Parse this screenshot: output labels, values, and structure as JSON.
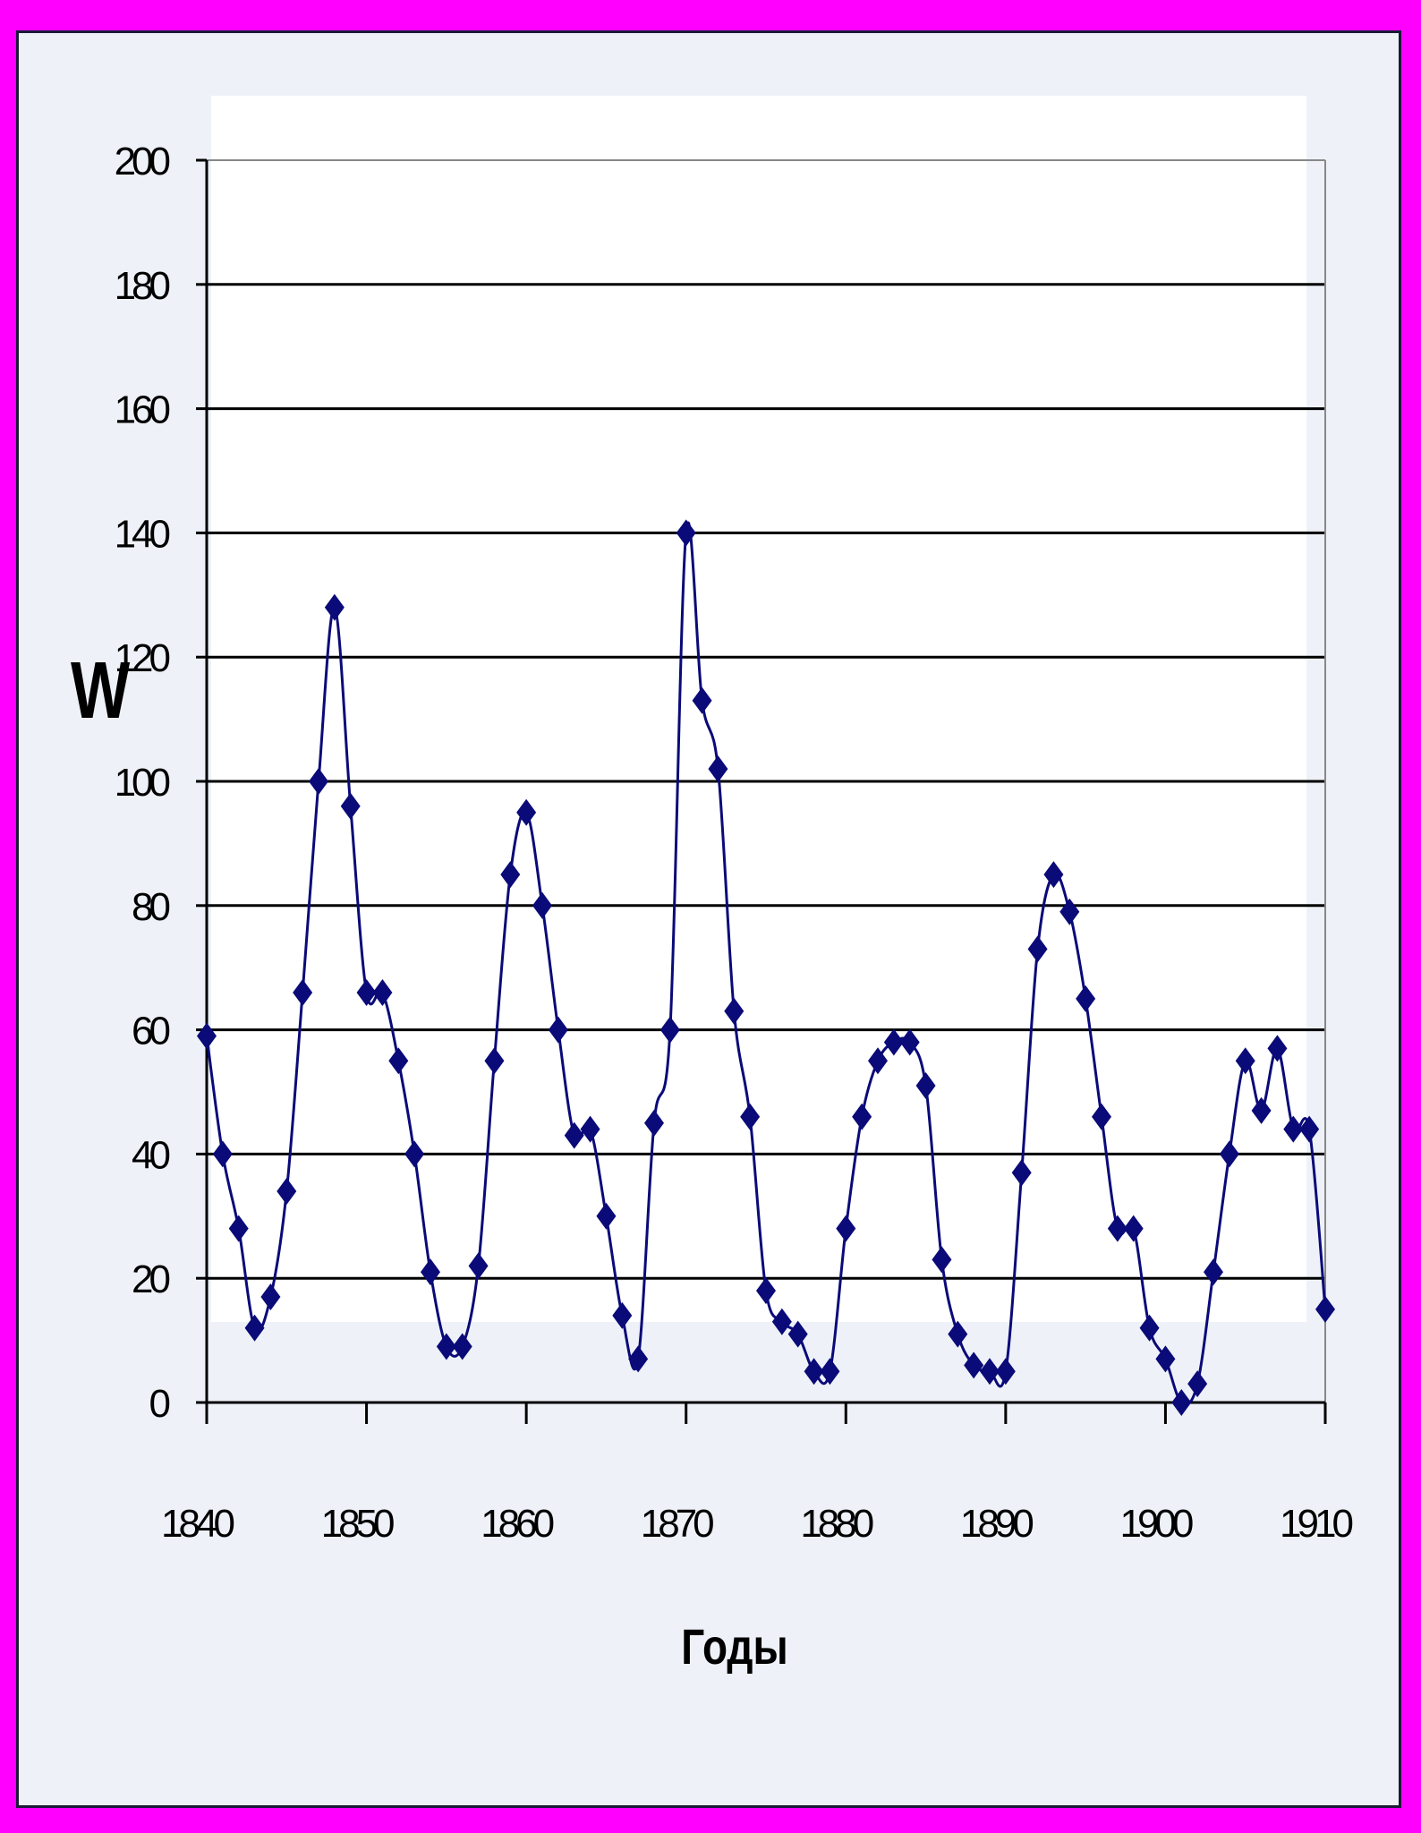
{
  "chart_data": {
    "type": "line",
    "ylabel": "W",
    "xlabel": "Годы",
    "ylim": [
      0,
      200
    ],
    "xlim": [
      1840,
      1910
    ],
    "grid": true,
    "yticks": [
      0,
      20,
      40,
      60,
      80,
      100,
      120,
      140,
      160,
      180,
      200
    ],
    "xticks": [
      1840,
      1850,
      1860,
      1870,
      1880,
      1890,
      1900,
      1910
    ],
    "series_color": "#0a0a78",
    "marker": "diamond",
    "series": [
      {
        "x": [
          1840,
          1841,
          1842,
          1843,
          1844,
          1845,
          1846,
          1847,
          1848,
          1849,
          1850,
          1851,
          1852,
          1853,
          1854,
          1855,
          1856,
          1857,
          1858,
          1859,
          1860,
          1861,
          1862,
          1863,
          1864,
          1865,
          1866,
          1867,
          1868,
          1869,
          1870,
          1871,
          1872,
          1873,
          1874,
          1875,
          1876,
          1877,
          1878,
          1879,
          1880,
          1881,
          1882,
          1883,
          1884,
          1885,
          1886,
          1887,
          1888,
          1889,
          1890,
          1891,
          1892,
          1893,
          1894,
          1895,
          1896,
          1897,
          1898,
          1899,
          1900,
          1901,
          1902,
          1903,
          1904,
          1905,
          1906,
          1907,
          1908,
          1909,
          1910
        ],
        "values": [
          59,
          40,
          28,
          12,
          17,
          34,
          66,
          100,
          128,
          96,
          66,
          66,
          55,
          40,
          21,
          9,
          9,
          22,
          55,
          85,
          95,
          80,
          60,
          43,
          44,
          30,
          14,
          7,
          45,
          60,
          140,
          113,
          102,
          63,
          46,
          18,
          13,
          11,
          5,
          5,
          28,
          46,
          55,
          58,
          58,
          51,
          23,
          11,
          6,
          5,
          5,
          37,
          73,
          85,
          79,
          65,
          46,
          28,
          28,
          12,
          7,
          0,
          3,
          21,
          40,
          55,
          47,
          57,
          44,
          44,
          15
        ]
      }
    ]
  }
}
